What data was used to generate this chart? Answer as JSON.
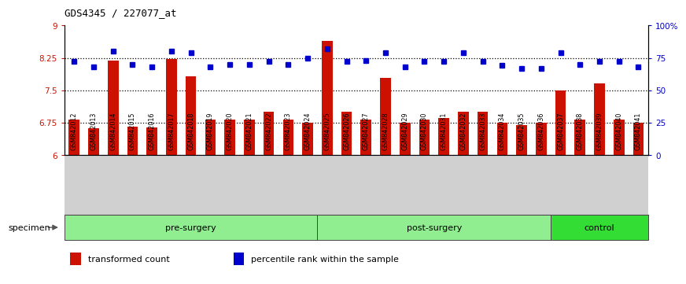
{
  "title": "GDS4345 / 227077_at",
  "samples": [
    "GSM842012",
    "GSM842013",
    "GSM842014",
    "GSM842015",
    "GSM842016",
    "GSM842017",
    "GSM842018",
    "GSM842019",
    "GSM842020",
    "GSM842021",
    "GSM842022",
    "GSM842023",
    "GSM842024",
    "GSM842025",
    "GSM842026",
    "GSM842027",
    "GSM842028",
    "GSM842029",
    "GSM842030",
    "GSM842031",
    "GSM842032",
    "GSM842033",
    "GSM842034",
    "GSM842035",
    "GSM842036",
    "GSM842037",
    "GSM842038",
    "GSM842039",
    "GSM842040",
    "GSM842041"
  ],
  "bar_values": [
    6.82,
    6.62,
    8.18,
    6.65,
    6.63,
    8.22,
    7.83,
    6.82,
    6.82,
    6.82,
    7.0,
    6.82,
    6.75,
    8.65,
    7.0,
    6.82,
    7.78,
    6.75,
    6.82,
    6.85,
    7.0,
    7.0,
    6.75,
    6.7,
    6.75,
    7.5,
    6.82,
    7.65,
    6.82,
    6.75
  ],
  "percentile_values": [
    72,
    68,
    80,
    70,
    68,
    80,
    79,
    68,
    70,
    70,
    72,
    70,
    75,
    82,
    72,
    73,
    79,
    68,
    72,
    72,
    79,
    72,
    69,
    67,
    67,
    79,
    70,
    72,
    72,
    68
  ],
  "groups": [
    {
      "label": "pre-surgery",
      "start": 0,
      "end": 13,
      "color": "#90EE90"
    },
    {
      "label": "post-surgery",
      "start": 13,
      "end": 25,
      "color": "#90EE90"
    },
    {
      "label": "control",
      "start": 25,
      "end": 30,
      "color": "#33DD33"
    }
  ],
  "bar_color": "#CC1100",
  "percentile_color": "#0000CC",
  "ylim_left": [
    6,
    9
  ],
  "ylim_right": [
    0,
    100
  ],
  "yticks_left": [
    6,
    6.75,
    7.5,
    8.25,
    9
  ],
  "yticks_right": [
    0,
    25,
    50,
    75,
    100
  ],
  "ytick_labels_left": [
    "6",
    "6.75",
    "7.5",
    "8.25",
    "9"
  ],
  "ytick_labels_right": [
    "0",
    "25",
    "50",
    "75",
    "100%"
  ],
  "hlines": [
    6.75,
    7.5,
    8.25
  ],
  "bar_width": 0.55,
  "specimen_label": "specimen",
  "legend_items": [
    {
      "color": "#CC1100",
      "label": "transformed count"
    },
    {
      "color": "#0000CC",
      "label": "percentile rank within the sample"
    }
  ]
}
